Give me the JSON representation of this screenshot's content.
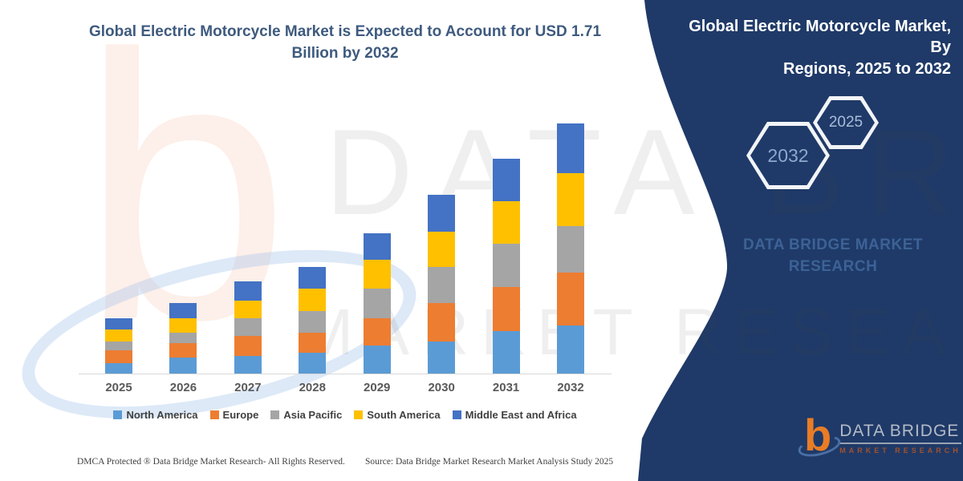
{
  "header": {
    "title": "Global Electric Motorcycle Market is Expected to Account for USD 1.71 Billion by 2032"
  },
  "chart_data": {
    "type": "bar",
    "stacked": true,
    "title": "Global Electric Motorcycle Market is Expected to Account for USD 1.71 Billion by 2032",
    "unit": "USD Billion",
    "categories": [
      "2025",
      "2026",
      "2027",
      "2028",
      "2029",
      "2030",
      "2031",
      "2032"
    ],
    "series": [
      {
        "name": "North America",
        "color": "#5B9BD5",
        "values": [
          0.07,
          0.11,
          0.12,
          0.14,
          0.19,
          0.22,
          0.29,
          0.33
        ]
      },
      {
        "name": "Europe",
        "color": "#ED7D31",
        "values": [
          0.09,
          0.1,
          0.14,
          0.14,
          0.19,
          0.26,
          0.3,
          0.36
        ]
      },
      {
        "name": "Asia Pacific",
        "color": "#A5A5A5",
        "values": [
          0.06,
          0.07,
          0.12,
          0.15,
          0.2,
          0.25,
          0.3,
          0.32
        ]
      },
      {
        "name": "South America",
        "color": "#FFC000",
        "values": [
          0.08,
          0.1,
          0.12,
          0.15,
          0.2,
          0.24,
          0.29,
          0.36
        ]
      },
      {
        "name": "Middle East and Africa",
        "color": "#4472C4",
        "values": [
          0.08,
          0.1,
          0.13,
          0.15,
          0.18,
          0.25,
          0.29,
          0.34
        ]
      }
    ],
    "totals": [
      0.37,
      0.48,
      0.63,
      0.73,
      0.96,
      1.22,
      1.47,
      1.71
    ],
    "xlabel": "",
    "ylabel": "",
    "ylim": [
      0,
      1.8
    ],
    "grid": false,
    "legend_position": "bottom"
  },
  "side_panel": {
    "bg_color": "#1F3A68",
    "title_line1": "Global Electric Motorcycle Market, By",
    "title_line2": "Regions, 2025 to 2032",
    "hexagons": [
      {
        "label": "2032"
      },
      {
        "label": "2025"
      }
    ],
    "brand_line1": "DATA BRIDGE MARKET",
    "brand_line2": "RESEARCH"
  },
  "watermark": {
    "letter": "b",
    "line1": "DATA BRIDGE",
    "line2": "MARKET RESEARCH"
  },
  "logo": {
    "glyph": "b",
    "name": "DATA BRIDGE",
    "subtitle": "MARKET RESEARCH"
  },
  "footer": {
    "left": "DMCA Protected ® Data Bridge Market Research-  All Rights Reserved.",
    "right": "Source: Data Bridge Market Research  Market Analysis Study 2025"
  }
}
